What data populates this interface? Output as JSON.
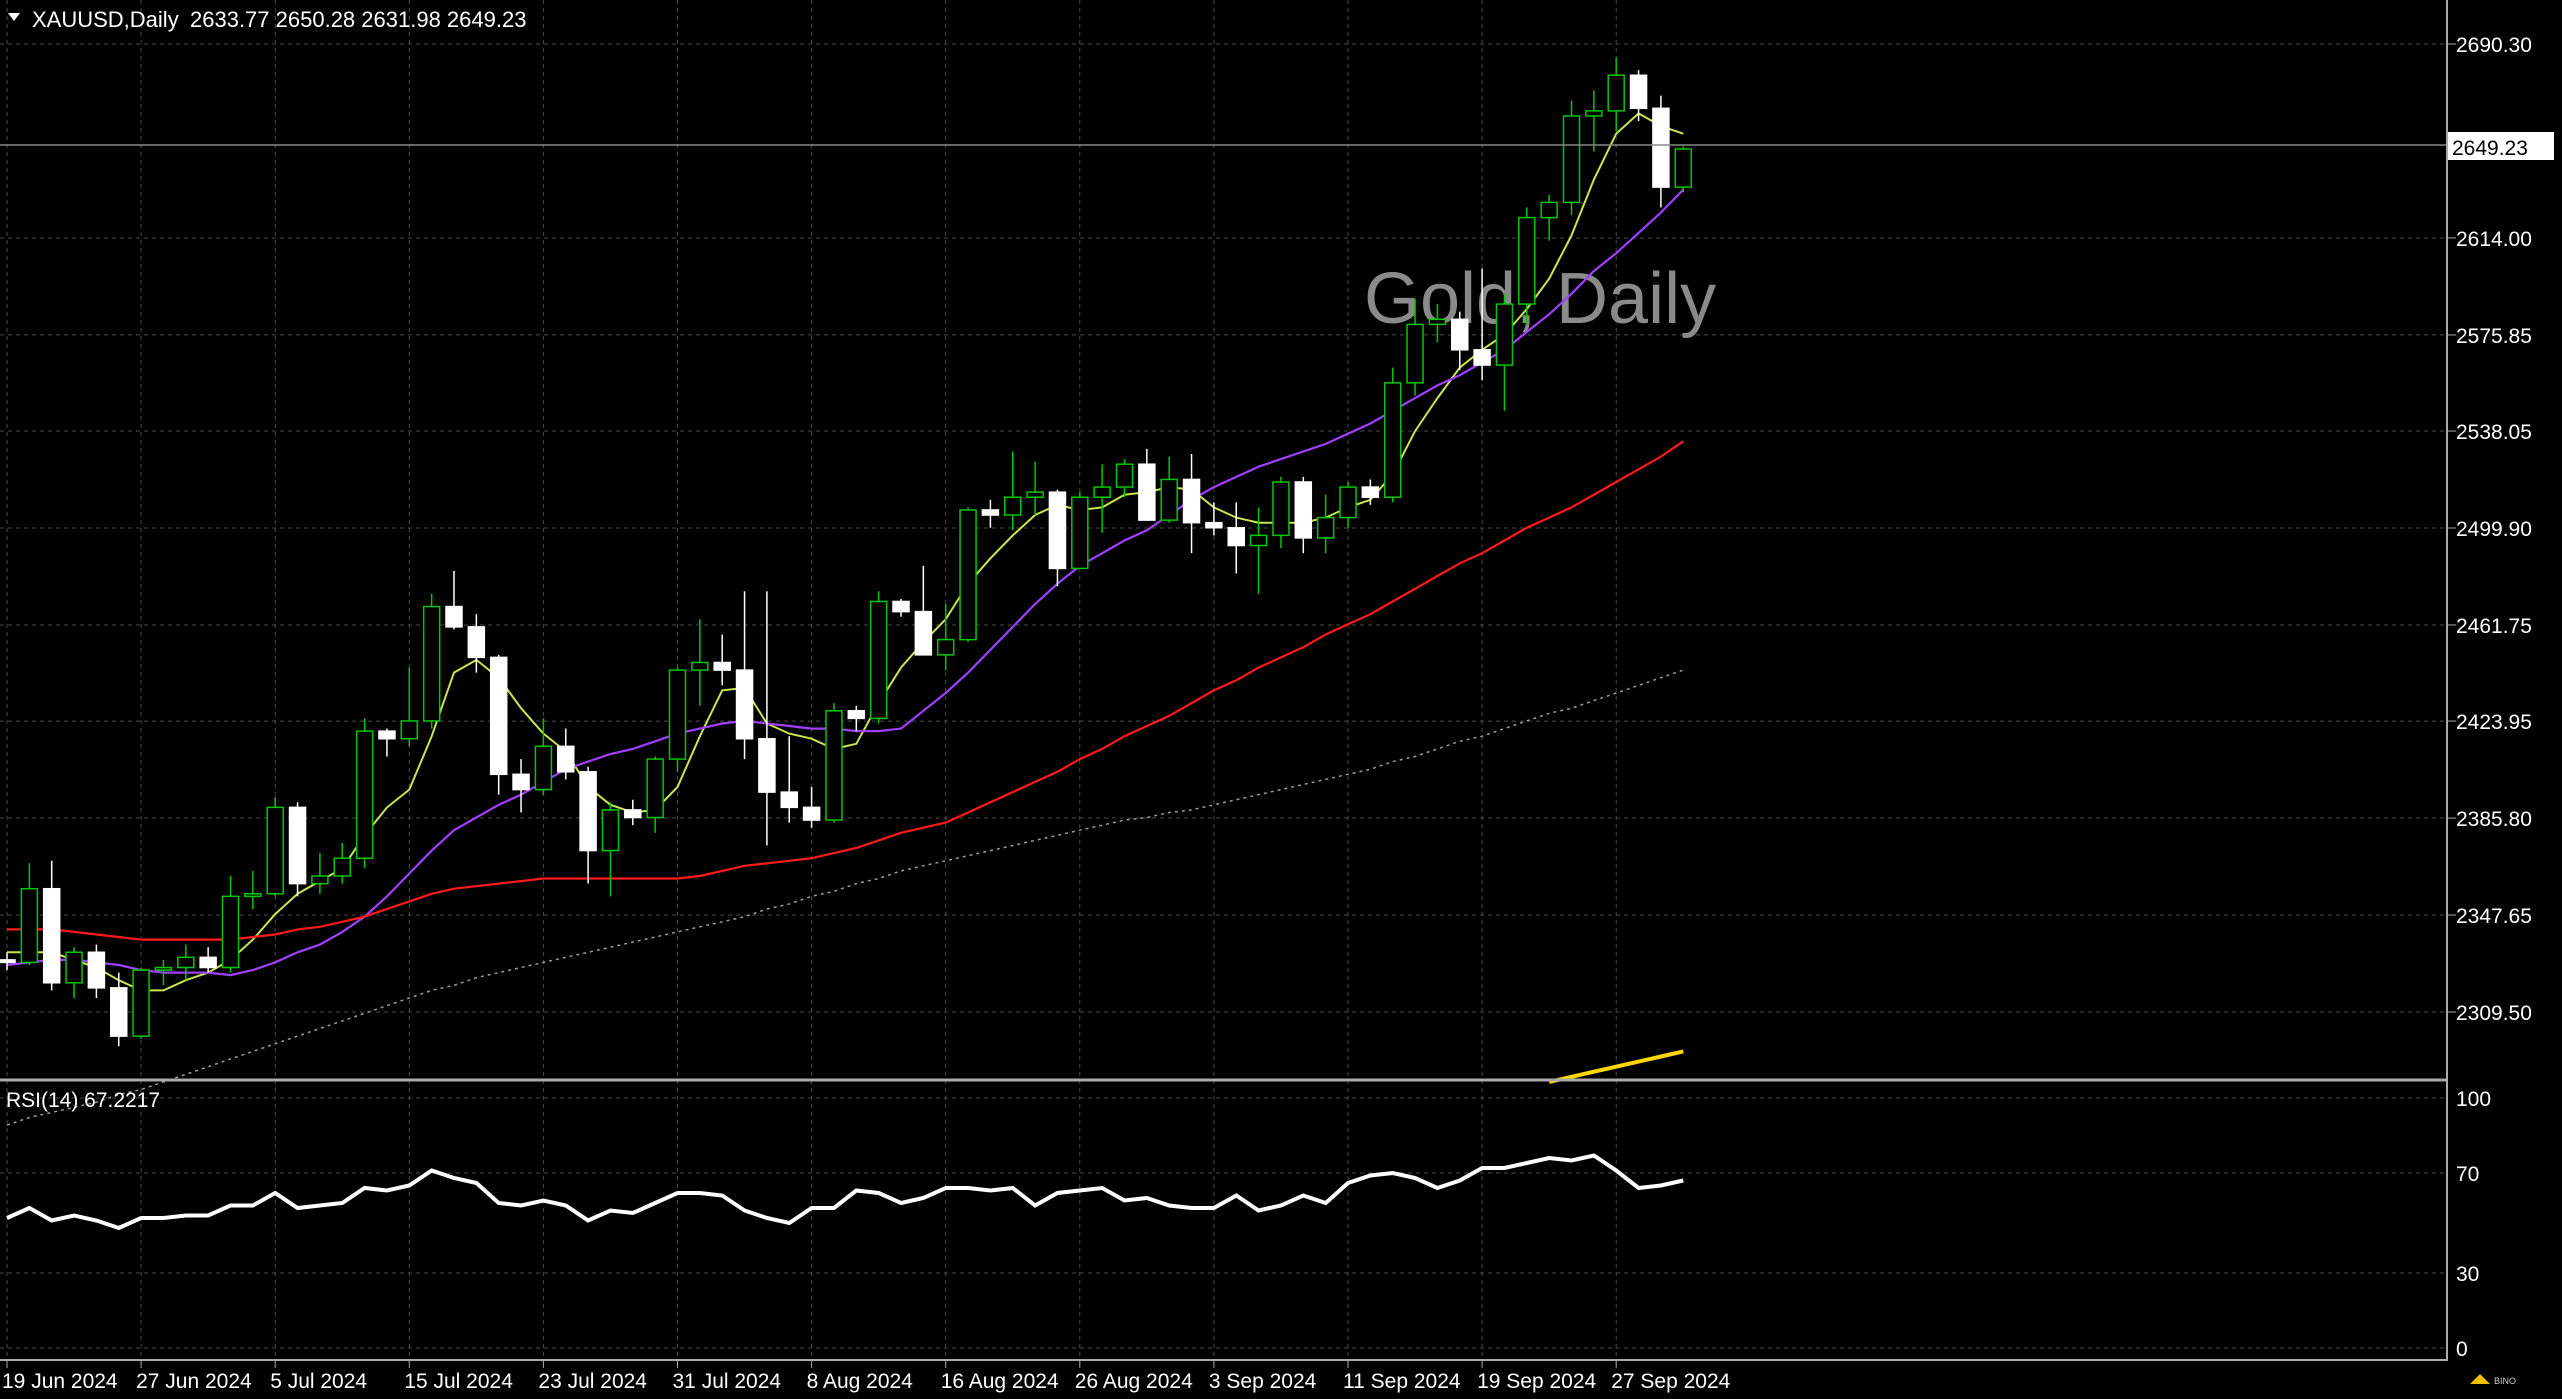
{
  "header": {
    "symbol": "XAUUSD,Daily",
    "ohlc": "2633.77 2650.28 2631.98 2649.23"
  },
  "watermark": "Gold, Daily",
  "current_price_label": "2649.23",
  "rsi_label": "RSI(14) 67.2217",
  "colors": {
    "background": "#000000",
    "grid": "#4a4a4a",
    "candle_bull_border": "#00c800",
    "candle_bear_fill": "#ffffff",
    "ma_fast": "#c8e650",
    "ma_mid": "#a040ff",
    "ma_slow": "#ff1a1a",
    "ma_200": "#9a9a9a",
    "extra_line": "#ffd700",
    "rsi_line": "#ffffff",
    "text": "#ffffff"
  },
  "chart_data": [
    {
      "type": "candlestick",
      "title": "Gold, Daily",
      "y_ticks": [
        "2690.30",
        "2614.00",
        "2575.85",
        "2538.05",
        "2499.90",
        "2461.75",
        "2423.95",
        "2385.80",
        "2347.65",
        "2309.50"
      ],
      "ylim": [
        2282,
        2700
      ],
      "x_labels": [
        {
          "i": 0,
          "label": "19 Jun 2024"
        },
        {
          "i": 6,
          "label": "27 Jun 2024"
        },
        {
          "i": 12,
          "label": "5 Jul 2024"
        },
        {
          "i": 18,
          "label": "15 Jul 2024"
        },
        {
          "i": 24,
          "label": "23 Jul 2024"
        },
        {
          "i": 30,
          "label": "31 Jul 2024"
        },
        {
          "i": 36,
          "label": "8 Aug 2024"
        },
        {
          "i": 42,
          "label": "16 Aug 2024"
        },
        {
          "i": 48,
          "label": "26 Aug 2024"
        },
        {
          "i": 54,
          "label": "3 Sep 2024"
        },
        {
          "i": 60,
          "label": "11 Sep 2024"
        },
        {
          "i": 66,
          "label": "19 Sep 2024"
        },
        {
          "i": 72,
          "label": "27 Sep 2024"
        }
      ],
      "candles": [
        [
          2330,
          2333,
          2326,
          2329
        ],
        [
          2329,
          2368,
          2328,
          2358
        ],
        [
          2358,
          2369,
          2318,
          2321
        ],
        [
          2321,
          2335,
          2315,
          2333
        ],
        [
          2333,
          2336,
          2315,
          2319
        ],
        [
          2319,
          2325,
          2296,
          2300
        ],
        [
          2300,
          2327,
          2299,
          2326
        ],
        [
          2326,
          2330,
          2320,
          2327
        ],
        [
          2327,
          2336,
          2322,
          2331
        ],
        [
          2331,
          2335,
          2325,
          2327
        ],
        [
          2327,
          2363,
          2325,
          2355
        ],
        [
          2355,
          2365,
          2350,
          2356
        ],
        [
          2356,
          2394,
          2355,
          2390
        ],
        [
          2390,
          2392,
          2355,
          2360
        ],
        [
          2360,
          2372,
          2356,
          2363
        ],
        [
          2363,
          2376,
          2360,
          2370
        ],
        [
          2370,
          2425,
          2366,
          2420
        ],
        [
          2420,
          2421,
          2410,
          2417
        ],
        [
          2417,
          2445,
          2414,
          2424
        ],
        [
          2424,
          2474,
          2421,
          2469
        ],
        [
          2469,
          2483,
          2460,
          2461
        ],
        [
          2461,
          2466,
          2443,
          2449
        ],
        [
          2449,
          2450,
          2395,
          2403
        ],
        [
          2403,
          2409,
          2388,
          2397
        ],
        [
          2397,
          2425,
          2395,
          2414
        ],
        [
          2414,
          2421,
          2401,
          2404
        ],
        [
          2404,
          2406,
          2360,
          2373
        ],
        [
          2373,
          2392,
          2355,
          2389
        ],
        [
          2389,
          2393,
          2383,
          2386
        ],
        [
          2386,
          2410,
          2380,
          2409
        ],
        [
          2409,
          2445,
          2404,
          2444
        ],
        [
          2444,
          2464,
          2430,
          2447
        ],
        [
          2447,
          2458,
          2438,
          2444
        ],
        [
          2444,
          2475,
          2409,
          2417
        ],
        [
          2417,
          2475,
          2375,
          2396
        ],
        [
          2396,
          2418,
          2384,
          2390
        ],
        [
          2390,
          2398,
          2382,
          2385
        ],
        [
          2385,
          2431,
          2384,
          2428
        ],
        [
          2428,
          2430,
          2420,
          2425
        ],
        [
          2425,
          2475,
          2423,
          2471
        ],
        [
          2471,
          2472,
          2465,
          2467
        ],
        [
          2467,
          2485,
          2450,
          2450
        ],
        [
          2450,
          2470,
          2444,
          2456
        ],
        [
          2456,
          2508,
          2455,
          2507
        ],
        [
          2507,
          2511,
          2500,
          2505
        ],
        [
          2505,
          2530,
          2499,
          2512
        ],
        [
          2512,
          2526,
          2505,
          2514
        ],
        [
          2514,
          2515,
          2477,
          2484
        ],
        [
          2484,
          2514,
          2484,
          2512
        ],
        [
          2512,
          2525,
          2498,
          2516
        ],
        [
          2516,
          2527,
          2512,
          2525
        ],
        [
          2525,
          2531,
          2503,
          2503
        ],
        [
          2503,
          2528,
          2502,
          2519
        ],
        [
          2519,
          2529,
          2490,
          2502
        ],
        [
          2502,
          2510,
          2497,
          2500
        ],
        [
          2500,
          2510,
          2482,
          2493
        ],
        [
          2493,
          2508,
          2474,
          2497
        ],
        [
          2497,
          2520,
          2492,
          2518
        ],
        [
          2518,
          2520,
          2490,
          2496
        ],
        [
          2496,
          2513,
          2490,
          2504
        ],
        [
          2504,
          2518,
          2500,
          2516
        ],
        [
          2516,
          2519,
          2509,
          2512
        ],
        [
          2512,
          2563,
          2510,
          2557
        ],
        [
          2557,
          2590,
          2552,
          2580
        ],
        [
          2580,
          2588,
          2573,
          2582
        ],
        [
          2582,
          2585,
          2562,
          2570
        ],
        [
          2570,
          2602,
          2558,
          2564
        ],
        [
          2564,
          2592,
          2546,
          2588
        ],
        [
          2588,
          2626,
          2580,
          2622
        ],
        [
          2622,
          2631,
          2613,
          2628
        ],
        [
          2628,
          2668,
          2623,
          2662
        ],
        [
          2662,
          2672,
          2648,
          2664
        ],
        [
          2664,
          2685,
          2656,
          2678
        ],
        [
          2678,
          2680,
          2660,
          2665
        ],
        [
          2665,
          2670,
          2626,
          2634
        ],
        [
          2634,
          2650,
          2632,
          2649
        ]
      ],
      "moving_averages": [
        {
          "name": "fast",
          "color": "#c8e650",
          "values": [
            2333,
            2333,
            2333,
            2330,
            2327,
            2322,
            2318,
            2318,
            2322,
            2325,
            2330,
            2338,
            2348,
            2356,
            2361,
            2366,
            2379,
            2390,
            2397,
            2418,
            2443,
            2448,
            2441,
            2429,
            2419,
            2412,
            2398,
            2391,
            2388,
            2389,
            2398,
            2418,
            2436,
            2437,
            2423,
            2419,
            2417,
            2413,
            2415,
            2431,
            2445,
            2455,
            2464,
            2478,
            2488,
            2497,
            2505,
            2509,
            2507,
            2508,
            2513,
            2514,
            2516,
            2515,
            2508,
            2504,
            2502,
            2502,
            2502,
            2504,
            2508,
            2511,
            2521,
            2538,
            2551,
            2563,
            2570,
            2576,
            2586,
            2598,
            2615,
            2637,
            2655,
            2663,
            2658,
            2655
          ]
        },
        {
          "name": "mid",
          "color": "#a040ff",
          "values": [
            2328,
            2329,
            2330,
            2330,
            2329,
            2328,
            2326,
            2325,
            2325,
            2325,
            2324,
            2326,
            2329,
            2333,
            2336,
            2341,
            2347,
            2355,
            2364,
            2373,
            2381,
            2386,
            2391,
            2395,
            2400,
            2405,
            2408,
            2411,
            2413,
            2416,
            2419,
            2421,
            2423,
            2424,
            2423,
            2422,
            2421,
            2421,
            2420,
            2420,
            2421,
            2428,
            2435,
            2443,
            2452,
            2461,
            2470,
            2478,
            2485,
            2490,
            2495,
            2499,
            2505,
            2511,
            2516,
            2520,
            2524,
            2527,
            2530,
            2533,
            2537,
            2541,
            2546,
            2551,
            2556,
            2560,
            2565,
            2570,
            2577,
            2584,
            2592,
            2601,
            2608,
            2616,
            2624,
            2633
          ]
        },
        {
          "name": "slow",
          "color": "#ff1a1a",
          "values": [
            2342,
            2342,
            2342,
            2341,
            2340,
            2339,
            2338,
            2338,
            2338,
            2338,
            2338,
            2339,
            2340,
            2342,
            2343,
            2345,
            2347,
            2350,
            2353,
            2356,
            2358,
            2359,
            2360,
            2361,
            2362,
            2362,
            2362,
            2362,
            2362,
            2362,
            2362,
            2363,
            2365,
            2367,
            2368,
            2369,
            2370,
            2372,
            2374,
            2377,
            2380,
            2382,
            2384,
            2388,
            2392,
            2396,
            2400,
            2404,
            2409,
            2413,
            2418,
            2422,
            2426,
            2431,
            2436,
            2440,
            2445,
            2449,
            2453,
            2458,
            2462,
            2466,
            2471,
            2476,
            2481,
            2486,
            2490,
            2495,
            2500,
            2504,
            2508,
            2513,
            2518,
            2523,
            2528,
            2534
          ]
        },
        {
          "name": "ma200",
          "color": "#9a9a9a",
          "values": [
            2265,
            2268,
            2270,
            2272,
            2274,
            2277,
            2279,
            2282,
            2285,
            2288,
            2291,
            2294,
            2297,
            2300,
            2303,
            2306,
            2309,
            2312,
            2315,
            2318,
            2320,
            2323,
            2325,
            2327,
            2329,
            2331,
            2333,
            2335,
            2337,
            2339,
            2341,
            2343,
            2345,
            2347,
            2350,
            2352,
            2355,
            2357,
            2360,
            2362,
            2365,
            2367,
            2369,
            2371,
            2373,
            2375,
            2377,
            2379,
            2381,
            2383,
            2385,
            2386,
            2388,
            2389,
            2391,
            2393,
            2395,
            2397,
            2399,
            2401,
            2403,
            2405,
            2408,
            2410,
            2413,
            2416,
            2418,
            2421,
            2424,
            2427,
            2429,
            2432,
            2435,
            2438,
            2441,
            2444
          ]
        },
        {
          "name": "extra",
          "color": "#ffd700",
          "values_from": 69,
          "values": [
            2282,
            2284,
            2286,
            2288,
            2290,
            2292,
            2294
          ]
        }
      ]
    },
    {
      "type": "line",
      "title": "RSI(14) 67.2217",
      "y_ticks": [
        "100",
        "70",
        "30",
        "0"
      ],
      "ylim": [
        0,
        100
      ],
      "series": [
        {
          "values": [
            52,
            56,
            51,
            53,
            51,
            48,
            52,
            52,
            53,
            53,
            57,
            57,
            62,
            56,
            57,
            58,
            64,
            63,
            65,
            71,
            68,
            66,
            58,
            57,
            59,
            57,
            51,
            55,
            54,
            58,
            62,
            62,
            61,
            55,
            52,
            50,
            56,
            56,
            63,
            62,
            58,
            60,
            64,
            64,
            63,
            64,
            57,
            62,
            63,
            64,
            59,
            60,
            57,
            56,
            56,
            61,
            55,
            57,
            61,
            58,
            66,
            69,
            70,
            68,
            64,
            67,
            72,
            72,
            74,
            76,
            75,
            77,
            71,
            64,
            65,
            67
          ]
        }
      ]
    }
  ]
}
